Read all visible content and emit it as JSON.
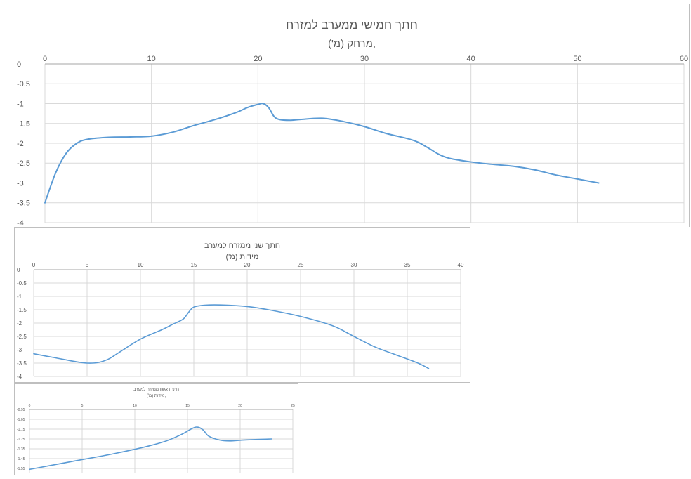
{
  "colors": {
    "line": "#5B9BD5",
    "grid": "#D9D9D9",
    "text": "#595959",
    "border": "#BFBFBF"
  },
  "chart_data": [
    {
      "type": "line",
      "title": "חתך חמישי  ממערב למזרח",
      "subtitle": "מרחק (מ'),",
      "xlim": [
        0,
        60
      ],
      "ylim": [
        -4,
        0
      ],
      "x_ticks": [
        0,
        10,
        20,
        30,
        40,
        50,
        60
      ],
      "y_ticks": [
        0,
        -0.5,
        -1,
        -1.5,
        -2,
        -2.5,
        -3,
        -3.5,
        -4
      ],
      "x_axis_position": "top",
      "grid": true,
      "series": [
        {
          "x": [
            0,
            1,
            2,
            3,
            4,
            6,
            8,
            10,
            12,
            14,
            16,
            18,
            19,
            20,
            20.5,
            21,
            21.5,
            22,
            23,
            24,
            26,
            28,
            30,
            32,
            34,
            35,
            36,
            37,
            38,
            40,
            42,
            44,
            46,
            48,
            50,
            52
          ],
          "y": [
            -3.5,
            -2.75,
            -2.25,
            -2.0,
            -1.9,
            -1.85,
            -1.84,
            -1.82,
            -1.72,
            -1.55,
            -1.4,
            -1.22,
            -1.1,
            -1.02,
            -1.0,
            -1.1,
            -1.32,
            -1.4,
            -1.42,
            -1.4,
            -1.37,
            -1.45,
            -1.58,
            -1.75,
            -1.88,
            -1.97,
            -2.12,
            -2.28,
            -2.38,
            -2.47,
            -2.53,
            -2.58,
            -2.67,
            -2.8,
            -2.9,
            -3.0
          ]
        }
      ]
    },
    {
      "type": "line",
      "title": "חתך שני ממזרח למערב",
      "subtitle": "מידות (מ')",
      "xlim": [
        0,
        40
      ],
      "ylim": [
        -4,
        0
      ],
      "x_ticks": [
        0,
        5,
        10,
        15,
        20,
        25,
        30,
        35,
        40
      ],
      "y_ticks": [
        0,
        -0.5,
        -1,
        -1.5,
        -2,
        -2.5,
        -3,
        -3.5,
        -4
      ],
      "x_axis_position": "top",
      "grid": true,
      "series": [
        {
          "x": [
            0,
            2,
            4,
            5,
            6,
            7,
            8,
            10,
            12,
            13,
            14,
            14.5,
            15,
            16,
            17.5,
            20,
            22,
            25,
            28,
            30,
            32,
            34,
            36,
            37
          ],
          "y": [
            -3.15,
            -3.3,
            -3.45,
            -3.5,
            -3.48,
            -3.35,
            -3.1,
            -2.6,
            -2.25,
            -2.05,
            -1.85,
            -1.6,
            -1.4,
            -1.33,
            -1.32,
            -1.38,
            -1.5,
            -1.75,
            -2.1,
            -2.5,
            -2.9,
            -3.2,
            -3.5,
            -3.7
          ]
        }
      ]
    },
    {
      "type": "line",
      "title": "חתך ראשון ממזרח למערב",
      "subtitle": "מידות (מ'),",
      "xlim": [
        0,
        25
      ],
      "ylim": [
        -1.6,
        -0.95
      ],
      "x_ticks": [
        0,
        5,
        10,
        15,
        20,
        25
      ],
      "y_ticks": [
        -0.95,
        -1.05,
        -1.15,
        -1.25,
        -1.35,
        -1.45,
        -1.55
      ],
      "x_axis_position": "top",
      "grid": true,
      "series": [
        {
          "x": [
            0,
            4,
            8,
            11,
            13,
            14.5,
            15.5,
            16,
            16.5,
            17,
            18,
            19,
            20.5,
            23
          ],
          "y": [
            -1.56,
            -1.48,
            -1.4,
            -1.33,
            -1.27,
            -1.2,
            -1.14,
            -1.13,
            -1.16,
            -1.22,
            -1.26,
            -1.27,
            -1.26,
            -1.25
          ]
        }
      ]
    }
  ]
}
